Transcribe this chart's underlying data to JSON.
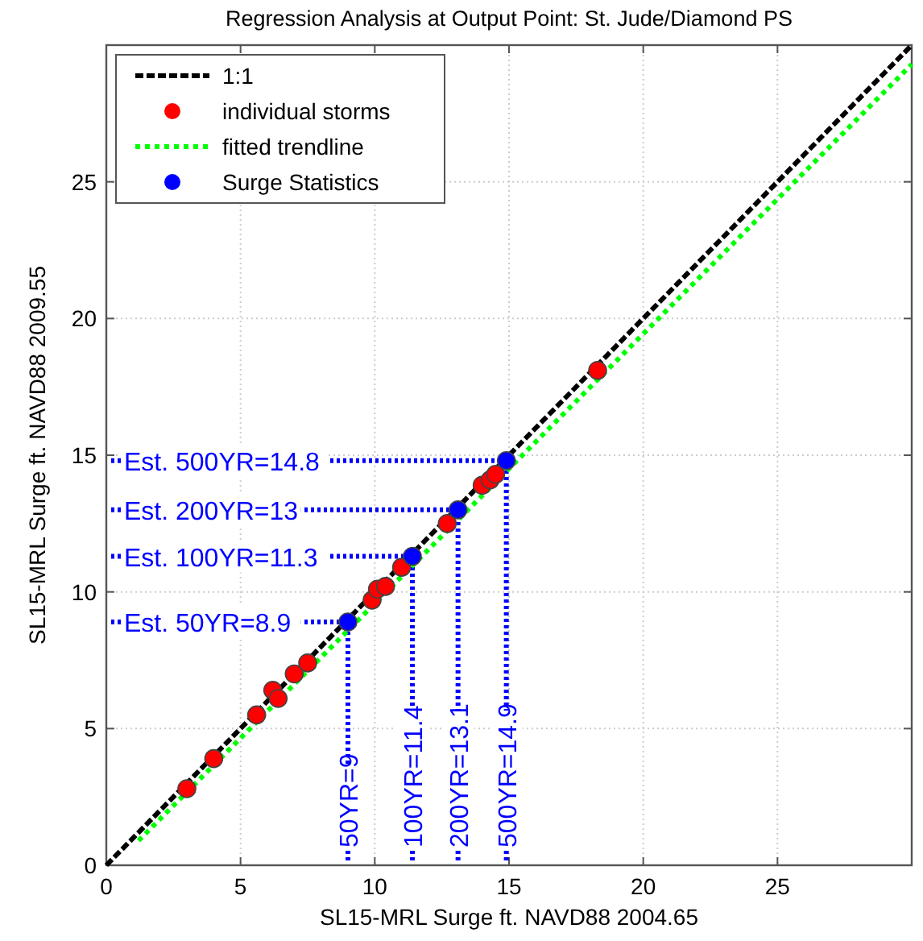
{
  "chart_data": {
    "type": "scatter",
    "title": "Regression Analysis at Output Point: St. Jude/Diamond PS",
    "xlabel": "SL15-MRL Surge ft. NAVD88 2004.65",
    "ylabel": "SL15-MRL Surge ft. NAVD88 2009.55",
    "xlim": [
      0,
      30
    ],
    "ylim": [
      0,
      30
    ],
    "xticks": [
      0,
      5,
      10,
      15,
      20,
      25
    ],
    "yticks": [
      0,
      5,
      10,
      15,
      20,
      25
    ],
    "grid": true,
    "legend": "top left",
    "series": [
      {
        "name": "1:1",
        "type": "line",
        "color": "#000000",
        "line_style": "dashed",
        "x": [
          0,
          30
        ],
        "values": [
          0,
          30
        ]
      },
      {
        "name": "individual storms",
        "color": "#ff0000",
        "marker": "circle",
        "x": [
          3,
          4,
          5.6,
          6.2,
          6.4,
          7,
          7.5,
          9.9,
          10.1,
          10.4,
          11,
          12.7,
          14,
          14.3,
          14.5,
          18.3
        ],
        "values": [
          2.8,
          3.9,
          5.5,
          6.4,
          6.1,
          7,
          7.4,
          9.7,
          10.1,
          10.2,
          10.9,
          12.5,
          13.9,
          14.1,
          14.3,
          18.1
        ]
      },
      {
        "name": "fitted trendline",
        "type": "line",
        "color": "#00ff00",
        "line_style": "dotted",
        "x": [
          1.2,
          30
        ],
        "values": [
          0.9,
          29.3
        ]
      },
      {
        "name": "Surge Statistics",
        "color": "#0000ff",
        "marker": "circle",
        "x": [
          9,
          11.4,
          13.1,
          14.9
        ],
        "values": [
          8.9,
          11.3,
          13,
          14.8
        ]
      }
    ],
    "annotations": [
      {
        "text": "Est. 500YR=14.8",
        "x": 14.9,
        "y": 14.8
      },
      {
        "text": "Est. 200YR=13",
        "x": 13.1,
        "y": 13
      },
      {
        "text": "Est. 100YR=11.3",
        "x": 11.4,
        "y": 11.3
      },
      {
        "text": "Est. 50YR=8.9",
        "x": 9,
        "y": 8.9
      },
      {
        "text": "50YR=9",
        "x": 9,
        "y": 8.9
      },
      {
        "text": "100YR=11.4",
        "x": 11.4,
        "y": 11.3
      },
      {
        "text": "200YR=13.1",
        "x": 13.1,
        "y": 13
      },
      {
        "text": "500YR=14.9",
        "x": 14.9,
        "y": 14.8
      }
    ]
  }
}
